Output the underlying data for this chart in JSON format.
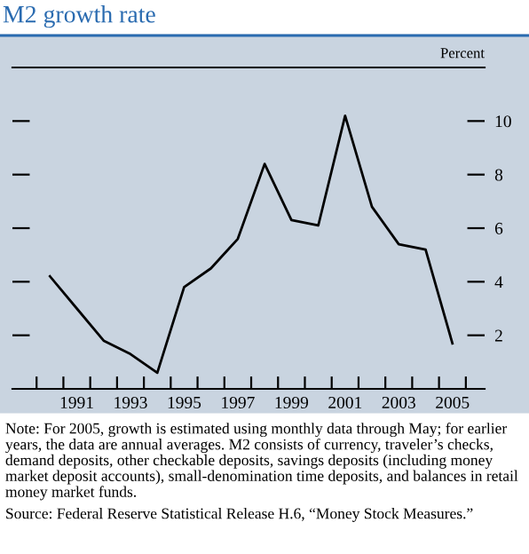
{
  "chart_data": {
    "type": "line",
    "title": "M2 growth rate",
    "ylabel": "Percent",
    "x": [
      1990,
      1991,
      1992,
      1993,
      1994,
      1995,
      1996,
      1997,
      1998,
      1999,
      2000,
      2001,
      2002,
      2003,
      2004,
      2005
    ],
    "series": [
      {
        "color": "#000000",
        "values": [
          4.2,
          3.0,
          1.8,
          1.3,
          0.6,
          3.8,
          4.5,
          5.6,
          8.4,
          6.3,
          6.1,
          10.2,
          6.8,
          5.4,
          5.2,
          1.7
        ]
      }
    ],
    "xlim": [
      1988.6,
      2006.2
    ],
    "xticks": [
      {
        "value": 1991,
        "label": "1991"
      },
      {
        "value": 1993,
        "label": "1993"
      },
      {
        "value": 1995,
        "label": "1995"
      },
      {
        "value": 1997,
        "label": "1997"
      },
      {
        "value": 1999,
        "label": "1999"
      },
      {
        "value": 2001,
        "label": "2001"
      },
      {
        "value": 2003,
        "label": "2003"
      },
      {
        "value": 2005,
        "label": "2005"
      },
      {
        "value": 1989.5,
        "label": null
      },
      {
        "value": 1990.5,
        "label": null
      },
      {
        "value": 1991.5,
        "label": null
      },
      {
        "value": 1992.5,
        "label": null
      },
      {
        "value": 1993.5,
        "label": null
      },
      {
        "value": 1994.5,
        "label": null
      },
      {
        "value": 1995.5,
        "label": null
      },
      {
        "value": 1996.5,
        "label": null
      },
      {
        "value": 1997.5,
        "label": null
      },
      {
        "value": 1998.5,
        "label": null
      },
      {
        "value": 1999.5,
        "label": null
      },
      {
        "value": 2000.5,
        "label": null
      },
      {
        "value": 2001.5,
        "label": null
      },
      {
        "value": 2002.5,
        "label": null
      },
      {
        "value": 2003.5,
        "label": null
      },
      {
        "value": 2004.5,
        "label": null
      },
      {
        "value": 2005.5,
        "label": null
      }
    ],
    "ylim": [
      0,
      12
    ],
    "yticks": [
      2,
      4,
      6,
      8,
      10
    ],
    "grid": false,
    "legend": false,
    "marker": "none",
    "line_style": "solid",
    "annotations": [
      "Note: For 2005, growth is estimated using monthly data through May; for earlier years, the data are annual averages. M2 consists of currency, traveler’s checks, demand deposits, other checkable deposits, savings deposits (including money market deposit accounts), small-denomination time deposits, and balances in retail money market funds.",
      "Source: Federal Reserve Statistical Release H.6, “Money Stock Measures.”"
    ]
  }
}
